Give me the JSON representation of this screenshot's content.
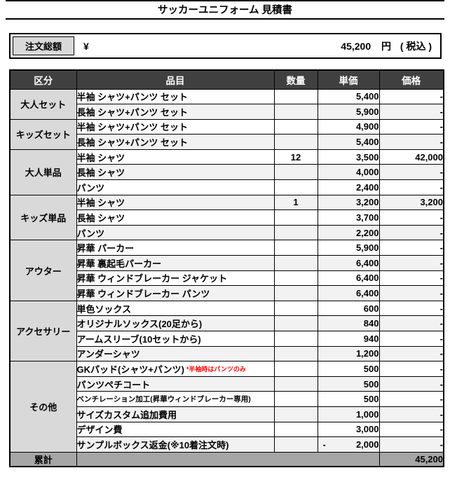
{
  "title": "サッカーユニフォーム 見積書",
  "order_total": {
    "label": "注文総額",
    "currency_symbol": "¥",
    "amount": "45,200",
    "unit": "円",
    "tax_note": "( 税込 )"
  },
  "table": {
    "headers": {
      "category": "区分",
      "item": "品目",
      "qty": "数量",
      "unit_price": "単価",
      "price": "価格"
    },
    "groups": [
      {
        "category": "大人セット",
        "rows": [
          {
            "item": "半袖 シャツ+パンツ セット",
            "qty": "",
            "unit_price": "5,400",
            "price": "-"
          },
          {
            "item": "長袖 シャツ+パンツ セット",
            "qty": "",
            "unit_price": "5,900",
            "price": "-"
          }
        ]
      },
      {
        "category": "キッズセット",
        "rows": [
          {
            "item": "半袖 シャツ+パンツ セット",
            "qty": "",
            "unit_price": "4,900",
            "price": "-"
          },
          {
            "item": "長袖 シャツ+パンツ セット",
            "qty": "",
            "unit_price": "5,400",
            "price": "-"
          }
        ]
      },
      {
        "category": "大人単品",
        "rows": [
          {
            "item": "半袖 シャツ",
            "qty": "12",
            "unit_price": "3,500",
            "price": "42,000"
          },
          {
            "item": "長袖 シャツ",
            "qty": "",
            "unit_price": "4,000",
            "price": "-"
          },
          {
            "item": "パンツ",
            "qty": "",
            "unit_price": "2,400",
            "price": "-"
          }
        ]
      },
      {
        "category": "キッズ単品",
        "rows": [
          {
            "item": "半袖 シャツ",
            "qty": "1",
            "unit_price": "3,200",
            "price": "3,200"
          },
          {
            "item": "長袖 シャツ",
            "qty": "",
            "unit_price": "3,700",
            "price": "-"
          },
          {
            "item": "パンツ",
            "qty": "",
            "unit_price": "2,200",
            "price": "-"
          }
        ]
      },
      {
        "category": "アウター",
        "rows": [
          {
            "item": "昇華 パーカー",
            "qty": "",
            "unit_price": "5,900",
            "price": "-"
          },
          {
            "item": "昇華 裏起毛パーカー",
            "qty": "",
            "unit_price": "6,400",
            "price": "-"
          },
          {
            "item": "昇華 ウィンドブレーカー ジャケット",
            "qty": "",
            "unit_price": "6,400",
            "price": "-"
          },
          {
            "item": "昇華 ウィンドブレーカー パンツ",
            "qty": "",
            "unit_price": "6,400",
            "price": "-"
          }
        ]
      },
      {
        "category": "アクセサリー",
        "rows": [
          {
            "item": "単色ソックス",
            "qty": "",
            "unit_price": "600",
            "price": "-"
          },
          {
            "item": "オリジナルソックス(20足から)",
            "qty": "",
            "unit_price": "840",
            "price": "-"
          },
          {
            "item": "アームスリーブ(10セットから)",
            "qty": "",
            "unit_price": "940",
            "price": "-"
          },
          {
            "item": "アンダーシャツ",
            "qty": "",
            "unit_price": "1,200",
            "price": "-"
          }
        ]
      },
      {
        "category": "その他",
        "rows": [
          {
            "item": "GKパッド(シャツ+パンツ)",
            "note": "*半袖時はパンツのみ",
            "qty": "",
            "unit_price": "500",
            "price": "-"
          },
          {
            "item": "パンツペチコート",
            "qty": "",
            "unit_price": "500",
            "price": "-"
          },
          {
            "item": "ベンチレーション加工(昇華ウィンドブレーカー専用)",
            "small": true,
            "qty": "",
            "unit_price": "500",
            "price": "-"
          },
          {
            "item": "サイズカスタム追加費用",
            "qty": "",
            "unit_price": "1,000",
            "price": "-"
          },
          {
            "item": "デザイン費",
            "qty": "",
            "unit_price": "3,000",
            "price": "-"
          },
          {
            "item": "サンプルボックス返金(※10着注文時)",
            "qty": "",
            "unit_price_sign": "-",
            "unit_price": "2,000",
            "price": "-"
          }
        ]
      }
    ],
    "total_row": {
      "label": "累計",
      "price": "45,200"
    }
  },
  "colors": {
    "header_bg": "#404040",
    "header_text": "#ffffff",
    "category_bg": "#d9d9d9",
    "alt_row_bg": "#f2f2f2",
    "total_row_bg": "#a6a6a6",
    "note_color": "#ff0000",
    "border": "#000000"
  }
}
